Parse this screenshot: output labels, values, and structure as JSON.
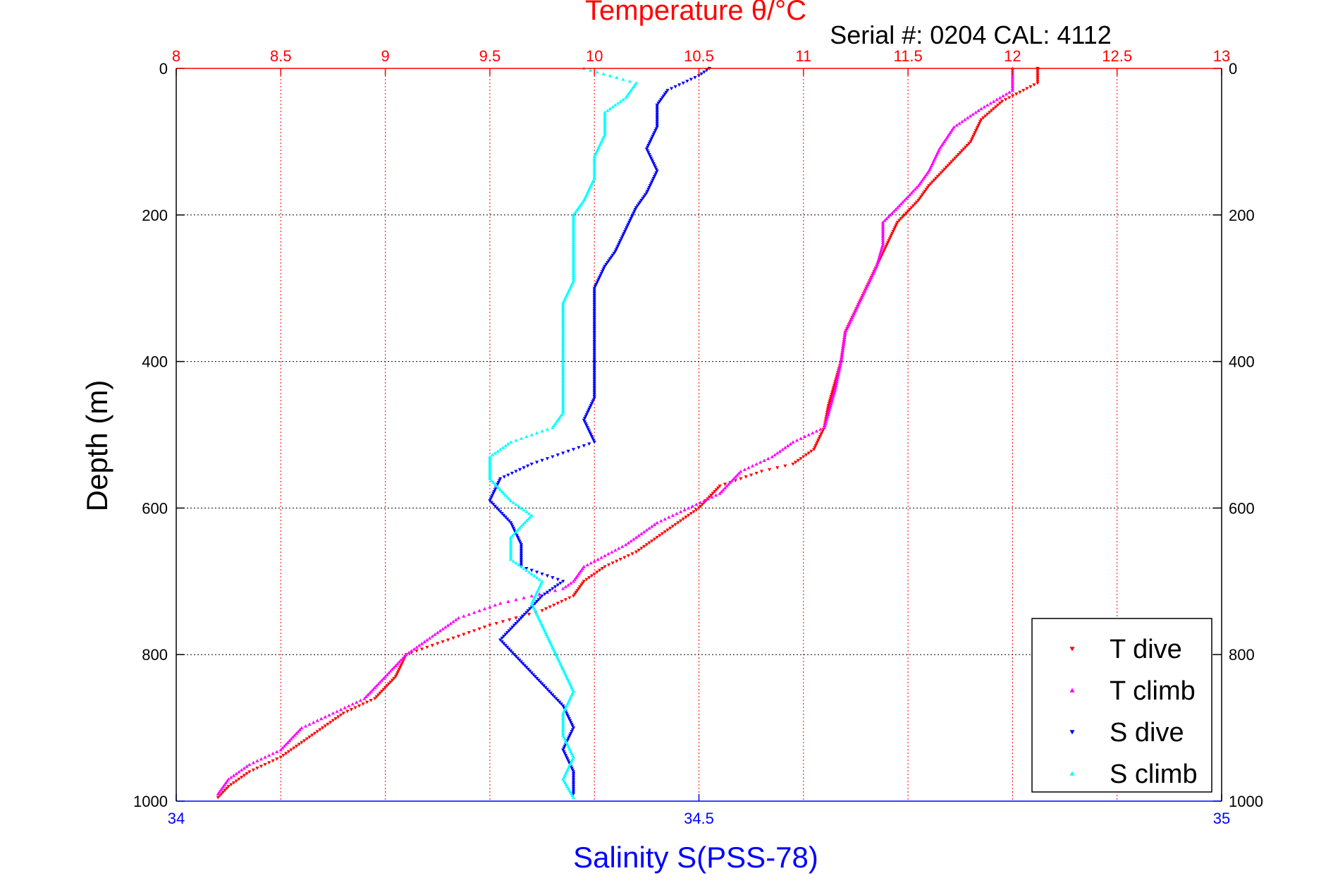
{
  "chart_data": {
    "type": "scatter",
    "title": "Temperature θ/°C",
    "subtitle": "Serial #: 0204  CAL: 4112",
    "xlabel": "Salinity S(PSS-78)",
    "ylabel": "Depth (m)",
    "temp_axis": {
      "range": [
        8,
        13
      ],
      "ticks": [
        "8",
        "8.5",
        "9",
        "9.5",
        "10",
        "10.5",
        "11",
        "11.5",
        "12",
        "12.5",
        "13"
      ],
      "color": "#ff0000"
    },
    "sal_axis": {
      "range": [
        34,
        35
      ],
      "ticks": [
        "34",
        "34.5",
        "35"
      ],
      "color": "#0000ff"
    },
    "depth_axis": {
      "range": [
        0,
        1000
      ],
      "reversed": true,
      "ticks": [
        "0",
        "200",
        "400",
        "600",
        "800",
        "1000"
      ]
    },
    "grid": true,
    "legend": {
      "placement": "bottom-right",
      "entries": [
        "T dive",
        "T climb",
        "S dive",
        "S climb"
      ]
    },
    "series": [
      {
        "name": "T dive",
        "axis": "temp",
        "color": "#ff0000",
        "marker": "triangle-down",
        "points": [
          [
            12.12,
            0
          ],
          [
            12.12,
            20
          ],
          [
            11.95,
            45
          ],
          [
            11.85,
            70
          ],
          [
            11.8,
            100
          ],
          [
            11.7,
            130
          ],
          [
            11.6,
            160
          ],
          [
            11.55,
            180
          ],
          [
            11.45,
            210
          ],
          [
            11.4,
            240
          ],
          [
            11.35,
            270
          ],
          [
            11.3,
            300
          ],
          [
            11.25,
            330
          ],
          [
            11.2,
            360
          ],
          [
            11.18,
            400
          ],
          [
            11.15,
            430
          ],
          [
            11.12,
            460
          ],
          [
            11.1,
            490
          ],
          [
            11.05,
            520
          ],
          [
            10.95,
            540
          ],
          [
            10.8,
            550
          ],
          [
            10.6,
            570
          ],
          [
            10.5,
            600
          ],
          [
            10.4,
            620
          ],
          [
            10.3,
            640
          ],
          [
            10.2,
            660
          ],
          [
            10.05,
            680
          ],
          [
            9.95,
            700
          ],
          [
            9.9,
            720
          ],
          [
            9.75,
            740
          ],
          [
            9.5,
            760
          ],
          [
            9.3,
            780
          ],
          [
            9.1,
            800
          ],
          [
            9.05,
            830
          ],
          [
            8.95,
            860
          ],
          [
            8.8,
            880
          ],
          [
            8.65,
            910
          ],
          [
            8.5,
            940
          ],
          [
            8.35,
            960
          ],
          [
            8.25,
            980
          ],
          [
            8.2,
            995
          ]
        ]
      },
      {
        "name": "T climb",
        "axis": "temp",
        "color": "#ff00ff",
        "marker": "triangle-up",
        "points": [
          [
            12.0,
            0
          ],
          [
            12.0,
            30
          ],
          [
            11.85,
            55
          ],
          [
            11.72,
            80
          ],
          [
            11.65,
            110
          ],
          [
            11.6,
            140
          ],
          [
            11.55,
            160
          ],
          [
            11.45,
            190
          ],
          [
            11.38,
            210
          ],
          [
            11.38,
            240
          ],
          [
            11.35,
            270
          ],
          [
            11.3,
            300
          ],
          [
            11.25,
            330
          ],
          [
            11.2,
            360
          ],
          [
            11.18,
            400
          ],
          [
            11.15,
            440
          ],
          [
            11.12,
            470
          ],
          [
            11.1,
            490
          ],
          [
            10.95,
            510
          ],
          [
            10.85,
            530
          ],
          [
            10.7,
            550
          ],
          [
            10.6,
            580
          ],
          [
            10.45,
            600
          ],
          [
            10.3,
            620
          ],
          [
            10.15,
            650
          ],
          [
            9.95,
            680
          ],
          [
            9.9,
            700
          ],
          [
            9.85,
            710
          ],
          [
            9.55,
            730
          ],
          [
            9.35,
            750
          ],
          [
            9.25,
            770
          ],
          [
            9.1,
            800
          ],
          [
            9.0,
            830
          ],
          [
            8.9,
            860
          ],
          [
            8.75,
            880
          ],
          [
            8.6,
            900
          ],
          [
            8.5,
            930
          ],
          [
            8.35,
            950
          ],
          [
            8.25,
            970
          ],
          [
            8.2,
            990
          ]
        ]
      },
      {
        "name": "S dive",
        "axis": "sal",
        "color": "#0000ff",
        "marker": "triangle-down",
        "points": [
          [
            34.51,
            0
          ],
          [
            34.5,
            10
          ],
          [
            34.47,
            30
          ],
          [
            34.46,
            50
          ],
          [
            34.46,
            80
          ],
          [
            34.45,
            110
          ],
          [
            34.46,
            140
          ],
          [
            34.45,
            170
          ],
          [
            34.44,
            190
          ],
          [
            34.43,
            220
          ],
          [
            34.42,
            250
          ],
          [
            34.41,
            270
          ],
          [
            34.4,
            300
          ],
          [
            34.4,
            330
          ],
          [
            34.4,
            360
          ],
          [
            34.4,
            390
          ],
          [
            34.4,
            420
          ],
          [
            34.4,
            450
          ],
          [
            34.39,
            480
          ],
          [
            34.4,
            510
          ],
          [
            34.34,
            540
          ],
          [
            34.31,
            560
          ],
          [
            34.3,
            590
          ],
          [
            34.32,
            620
          ],
          [
            34.33,
            650
          ],
          [
            34.33,
            680
          ],
          [
            34.37,
            700
          ],
          [
            34.35,
            720
          ],
          [
            34.33,
            750
          ],
          [
            34.31,
            780
          ],
          [
            34.33,
            810
          ],
          [
            34.35,
            840
          ],
          [
            34.37,
            870
          ],
          [
            34.38,
            900
          ],
          [
            34.37,
            930
          ],
          [
            34.38,
            960
          ],
          [
            34.38,
            990
          ]
        ]
      },
      {
        "name": "S climb",
        "axis": "sal",
        "color": "#00ffff",
        "marker": "triangle-up",
        "points": [
          [
            34.39,
            0
          ],
          [
            34.44,
            20
          ],
          [
            34.43,
            40
          ],
          [
            34.41,
            60
          ],
          [
            34.41,
            90
          ],
          [
            34.4,
            120
          ],
          [
            34.4,
            150
          ],
          [
            34.39,
            180
          ],
          [
            34.38,
            200
          ],
          [
            34.38,
            230
          ],
          [
            34.38,
            260
          ],
          [
            34.38,
            290
          ],
          [
            34.37,
            320
          ],
          [
            34.37,
            350
          ],
          [
            34.37,
            380
          ],
          [
            34.37,
            410
          ],
          [
            34.37,
            440
          ],
          [
            34.37,
            470
          ],
          [
            34.36,
            490
          ],
          [
            34.32,
            510
          ],
          [
            34.3,
            530
          ],
          [
            34.3,
            560
          ],
          [
            34.32,
            590
          ],
          [
            34.34,
            610
          ],
          [
            34.32,
            640
          ],
          [
            34.32,
            670
          ],
          [
            34.35,
            700
          ],
          [
            34.34,
            730
          ],
          [
            34.35,
            760
          ],
          [
            34.36,
            790
          ],
          [
            34.37,
            820
          ],
          [
            34.38,
            850
          ],
          [
            34.37,
            880
          ],
          [
            34.37,
            910
          ],
          [
            34.38,
            940
          ],
          [
            34.37,
            970
          ],
          [
            34.38,
            995
          ]
        ]
      }
    ]
  }
}
